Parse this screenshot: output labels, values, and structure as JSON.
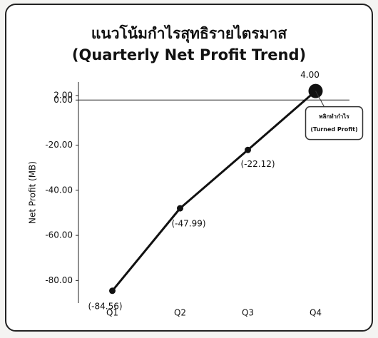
{
  "chart_data": {
    "type": "line",
    "title": "แนวโน้มกำไรสุทธิรายไตรมาส",
    "subtitle": "(Quarterly Net Profit Trend)",
    "y_label": "Net Profit (MB)",
    "categories": [
      "Q1",
      "Q2",
      "Q3",
      "Q4"
    ],
    "values": [
      -84.56,
      -47.99,
      -22.12,
      4.0
    ],
    "value_labels": [
      "(-84.56)",
      "(-47.99)",
      "(-22.12)",
      "4.00"
    ],
    "color": "#111111",
    "ylim": [
      -90,
      8
    ],
    "yticks": [
      {
        "value": 2,
        "label": "2.00"
      },
      {
        "value": 0,
        "label": "0.00"
      },
      {
        "value": -20,
        "label": "-20.00"
      },
      {
        "value": -40,
        "label": "-40.00"
      },
      {
        "value": -60,
        "label": "-60.00"
      },
      {
        "value": -80,
        "label": "-80.00"
      }
    ],
    "annotation": {
      "lines": [
        "พลิกทำกำไร",
        "(Turned Profit)"
      ]
    }
  }
}
